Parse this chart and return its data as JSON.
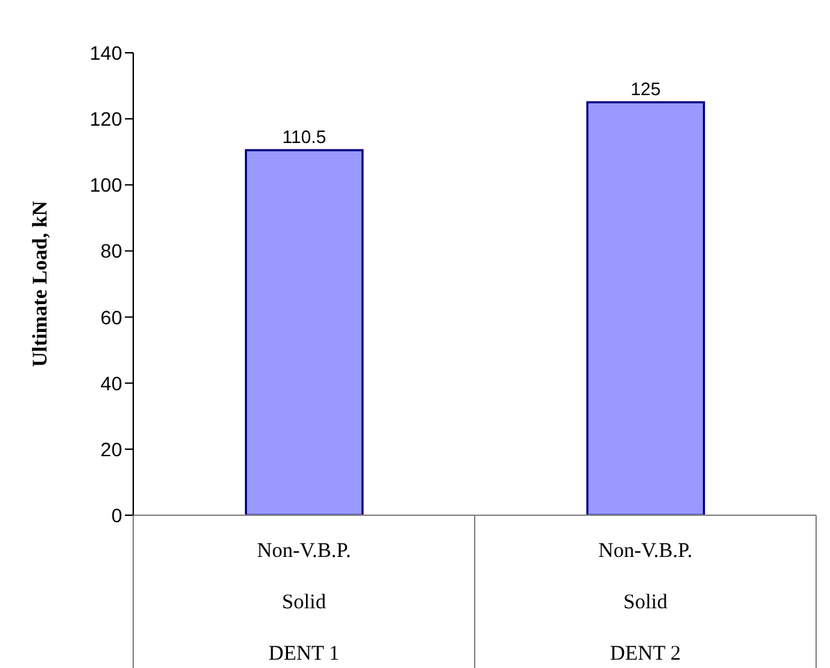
{
  "chart_data": {
    "type": "bar",
    "ylabel": "Ultimate Load, kN",
    "categories": [
      "Non-V.B.P.\nSolid\nDENT 1",
      "Non-V.B.P.\nSolid\nDENT 2"
    ],
    "values": [
      110.5,
      125
    ],
    "color": "#9999ff",
    "data_labels": true,
    "ylim": [
      0,
      140
    ],
    "yticks": [
      0,
      20,
      40,
      60,
      80,
      100,
      120,
      140
    ],
    "grid": false
  }
}
